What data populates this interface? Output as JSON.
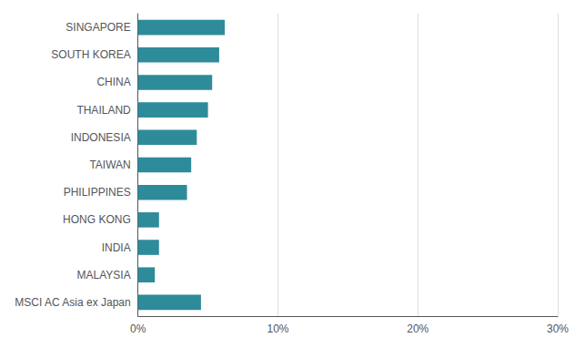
{
  "chart_data": {
    "type": "bar",
    "orientation": "horizontal",
    "categories": [
      "MSCI AC Asia ex Japan",
      "MALAYSIA",
      "INDIA",
      "HONG KONG",
      "PHILIPPINES",
      "TAIWAN",
      "INDONESIA",
      "THAILAND",
      "CHINA",
      "SOUTH KOREA",
      "SINGAPORE"
    ],
    "values": [
      4.5,
      1.2,
      1.5,
      1.5,
      3.5,
      3.8,
      4.2,
      5.0,
      5.3,
      5.8,
      6.2
    ],
    "color": "#2e8b9a",
    "xlim": [
      0,
      30
    ],
    "xticks": [
      {
        "value": 0,
        "label": "0%"
      },
      {
        "value": 10,
        "label": "10%"
      },
      {
        "value": 20,
        "label": "20%"
      },
      {
        "value": 30,
        "label": "30%"
      }
    ],
    "grid": true
  }
}
